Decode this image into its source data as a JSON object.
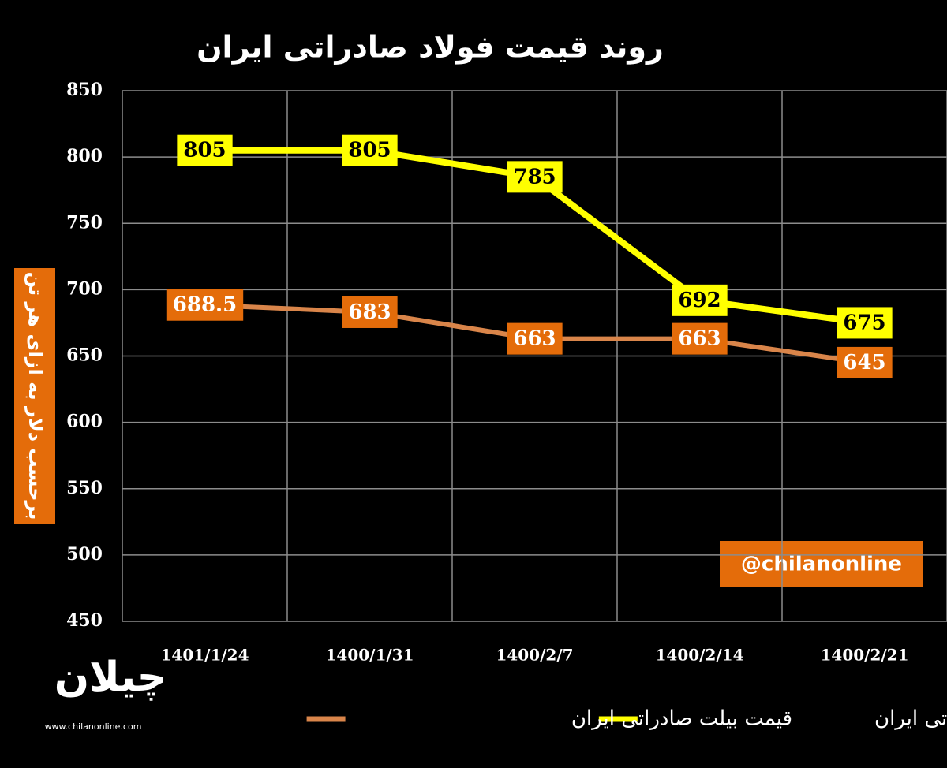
{
  "chart_data": {
    "type": "line",
    "title": "روند قیمت فولاد صادراتی ایران",
    "y_label": "برحسب دلار به ازای هر تن",
    "categories": [
      "1401/1/24",
      "1400/1/31",
      "1400/2/7",
      "1400/2/14",
      "1400/2/21"
    ],
    "series": [
      {
        "name": "قیمت اسلب صادراتی ایران",
        "color": "#ffff00",
        "values": [
          805,
          805,
          785,
          692,
          675
        ]
      },
      {
        "name": "قیمت بیلت صادراتی ایران",
        "color": "#d9854a",
        "values": [
          688.5,
          683,
          663,
          663,
          645
        ]
      }
    ],
    "ylim": [
      450,
      850
    ],
    "yticks": [
      450,
      500,
      550,
      600,
      650,
      700,
      750,
      800,
      850
    ],
    "grid": true,
    "watermark": "@chilanonline",
    "logo": "چیلان",
    "website": "www.chilanonline.com"
  }
}
